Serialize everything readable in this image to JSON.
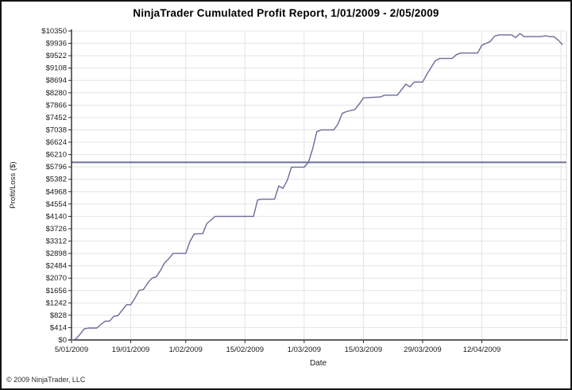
{
  "header": {
    "title": "NinjaTrader Cumulated Profit Report, 1/01/2009 - 2/05/2009"
  },
  "footer": {
    "copyright": "© 2009 NinjaTrader, LLC"
  },
  "chart_data": {
    "type": "line",
    "title": "NinjaTrader Cumulated Profit Report, 1/01/2009 - 2/05/2009",
    "xlabel": "Date",
    "ylabel": "Profit/Loss ($)",
    "ylim": [
      0,
      10350
    ],
    "xlim_days": [
      0,
      117
    ],
    "grid": true,
    "legend": "none",
    "colors": {
      "grid": "#e4e4e4",
      "axis": "#2a2a2a",
      "tick_text": "#1a1a1a",
      "plot_right_border": "#dcdcdc"
    },
    "y_ticks": [
      {
        "value": 10350,
        "label": "$10350"
      },
      {
        "value": 9936,
        "label": "$9936"
      },
      {
        "value": 9522,
        "label": "$9522"
      },
      {
        "value": 9108,
        "label": "$9108"
      },
      {
        "value": 8694,
        "label": "$8694"
      },
      {
        "value": 8280,
        "label": "$8280"
      },
      {
        "value": 7866,
        "label": "$7866"
      },
      {
        "value": 7452,
        "label": "$7452"
      },
      {
        "value": 7038,
        "label": "$7038"
      },
      {
        "value": 6624,
        "label": "$6624"
      },
      {
        "value": 6210,
        "label": "$6210"
      },
      {
        "value": 5796,
        "label": "$5796"
      },
      {
        "value": 5382,
        "label": "$5382"
      },
      {
        "value": 4968,
        "label": "$4968"
      },
      {
        "value": 4554,
        "label": "$4554"
      },
      {
        "value": 4140,
        "label": "$4140"
      },
      {
        "value": 3726,
        "label": "$3726"
      },
      {
        "value": 3312,
        "label": "$3312"
      },
      {
        "value": 2898,
        "label": "$2898"
      },
      {
        "value": 2484,
        "label": "$2484"
      },
      {
        "value": 2070,
        "label": "$2070"
      },
      {
        "value": 1656,
        "label": "$1656"
      },
      {
        "value": 1242,
        "label": "$1242"
      },
      {
        "value": 828,
        "label": "$828"
      },
      {
        "value": 414,
        "label": "$414"
      },
      {
        "value": 0,
        "label": "$0"
      }
    ],
    "x_ticks": [
      {
        "day": 0,
        "label": "5/01/2009"
      },
      {
        "day": 14,
        "label": "19/01/2009"
      },
      {
        "day": 27,
        "label": "1/02/2009"
      },
      {
        "day": 41,
        "label": "15/02/2009"
      },
      {
        "day": 55,
        "label": "1/03/2009"
      },
      {
        "day": 69,
        "label": "15/03/2009"
      },
      {
        "day": 83,
        "label": "29/03/2009"
      },
      {
        "day": 97,
        "label": "12/04/2009"
      }
    ],
    "extra_vertical_gridline_days": [
      115.7
    ],
    "reference_line": {
      "value": 5950,
      "color": "#6f6fa0"
    },
    "series": [
      {
        "name": "Cumulated Profit",
        "color": "#6b6b9b",
        "points": [
          [
            0,
            0
          ],
          [
            1,
            25
          ],
          [
            2,
            185
          ],
          [
            3,
            370
          ],
          [
            4,
            400
          ],
          [
            6,
            400
          ],
          [
            7,
            530
          ],
          [
            8,
            630
          ],
          [
            9,
            630
          ],
          [
            10,
            790
          ],
          [
            11,
            820
          ],
          [
            12,
            1000
          ],
          [
            13,
            1180
          ],
          [
            14,
            1180
          ],
          [
            15,
            1400
          ],
          [
            16,
            1660
          ],
          [
            17,
            1690
          ],
          [
            18,
            1900
          ],
          [
            19,
            2070
          ],
          [
            20,
            2110
          ],
          [
            21,
            2320
          ],
          [
            22,
            2580
          ],
          [
            23,
            2720
          ],
          [
            24,
            2898
          ],
          [
            27,
            2898
          ],
          [
            28,
            3300
          ],
          [
            29,
            3550
          ],
          [
            31,
            3560
          ],
          [
            32,
            3900
          ],
          [
            34,
            4140
          ],
          [
            43,
            4140
          ],
          [
            44,
            4690
          ],
          [
            45,
            4715
          ],
          [
            48,
            4715
          ],
          [
            49,
            5160
          ],
          [
            50,
            5080
          ],
          [
            51,
            5345
          ],
          [
            52,
            5790
          ],
          [
            55,
            5790
          ],
          [
            56,
            5950
          ],
          [
            57,
            6400
          ],
          [
            58,
            6980
          ],
          [
            59,
            7035
          ],
          [
            62,
            7035
          ],
          [
            63,
            7240
          ],
          [
            64,
            7590
          ],
          [
            65,
            7650
          ],
          [
            67,
            7720
          ],
          [
            68,
            7900
          ],
          [
            69,
            8110
          ],
          [
            73,
            8140
          ],
          [
            74,
            8200
          ],
          [
            77,
            8200
          ],
          [
            78,
            8375
          ],
          [
            79,
            8570
          ],
          [
            80,
            8480
          ],
          [
            81,
            8640
          ],
          [
            83,
            8640
          ],
          [
            84,
            8900
          ],
          [
            86,
            9350
          ],
          [
            87,
            9430
          ],
          [
            90,
            9430
          ],
          [
            91,
            9560
          ],
          [
            92,
            9610
          ],
          [
            96,
            9610
          ],
          [
            97,
            9870
          ],
          [
            99,
            10000
          ],
          [
            100,
            10175
          ],
          [
            101,
            10220
          ],
          [
            104,
            10220
          ],
          [
            105,
            10130
          ],
          [
            106,
            10265
          ],
          [
            107,
            10160
          ],
          [
            111,
            10160
          ],
          [
            112,
            10190
          ],
          [
            113,
            10160
          ],
          [
            114,
            10160
          ],
          [
            115,
            10050
          ],
          [
            116,
            9900
          ]
        ]
      }
    ]
  }
}
